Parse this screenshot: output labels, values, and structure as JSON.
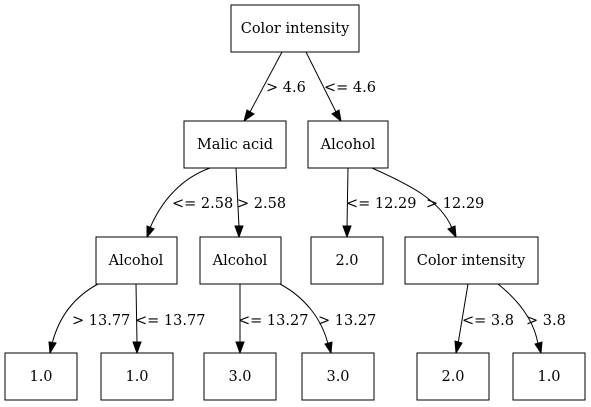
{
  "tree": {
    "nodes": {
      "root": "Color intensity",
      "malic_acid": "Malic acid",
      "alcohol_right": "Alcohol",
      "alcohol_ll": "Alcohol",
      "alcohol_lr": "Alcohol",
      "leaf_2_0_mid": "2.0",
      "color_intensity_2": "Color intensity",
      "leaf_1_0_a": "1.0",
      "leaf_1_0_b": "1.0",
      "leaf_3_0_a": "3.0",
      "leaf_3_0_b": "3.0",
      "leaf_2_0_right": "2.0",
      "leaf_1_0_right": "1.0"
    },
    "edges": {
      "root_left": "> 4.6",
      "root_right": "<= 4.6",
      "malic_left": "<= 2.58",
      "malic_right": "> 2.58",
      "alcohol_right_left": "<= 12.29",
      "alcohol_right_right": "> 12.29",
      "alcohol_ll_left": "> 13.77",
      "alcohol_ll_right": "<= 13.77",
      "alcohol_lr_left": "<= 13.27",
      "alcohol_lr_right": "> 13.27",
      "ci2_left": "<= 3.8",
      "ci2_right": "> 3.8"
    }
  }
}
